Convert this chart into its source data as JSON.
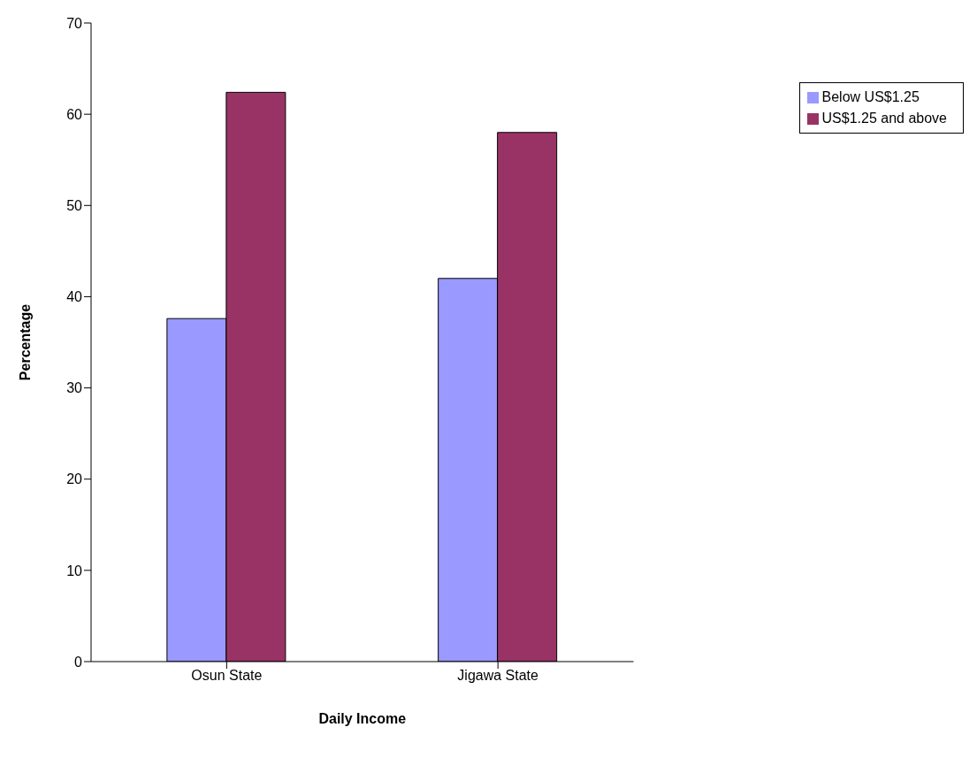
{
  "chart_data": {
    "type": "bar",
    "xlabel": "Daily Income",
    "ylabel": "Percentage",
    "categories": [
      "Osun State",
      "Jigawa State"
    ],
    "series": [
      {
        "name": "Below US$1.25",
        "color": "#9999ff",
        "values": [
          37.6,
          42
        ]
      },
      {
        "name": "US$1.25 and above",
        "color": "#993366",
        "values": [
          62.4,
          58
        ]
      }
    ],
    "ylim": [
      0,
      70
    ],
    "yticks": [
      0,
      10,
      20,
      30,
      40,
      50,
      60,
      70
    ],
    "grid": false,
    "legend": "right"
  }
}
